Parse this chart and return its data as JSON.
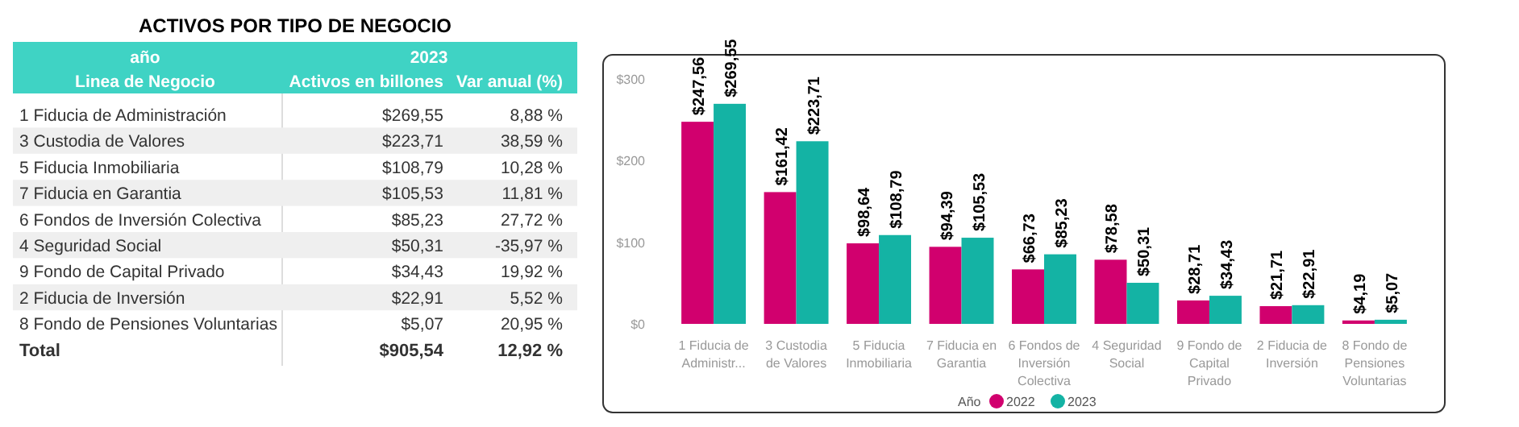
{
  "chart_data": [
    {
      "type": "other",
      "title": "ACTIVOS POR TIPO DE NEGOCIO",
      "ylabel": "Linea de Negocio",
      "annotations": [
        "año",
        "2023"
      ],
      "categories": [
        "Activos en billones",
        "Var anual (%)"
      ],
      "y_categories": [
        "1 Fiducia de Administración",
        "3 Custodia de Valores",
        "5 Fiducia Inmobiliaria",
        "7 Fiducia en Garantia",
        "6 Fondos de Inversión Colectiva",
        "4 Seguridad Social",
        "9 Fondo de Capital Privado",
        "2 Fiducia de Inversión",
        "8 Fondo de Pensiones Voluntarias",
        "Total"
      ],
      "cell_labels": [
        [
          "$269,55",
          "8,88 %"
        ],
        [
          "$223,71",
          "38,59 %"
        ],
        [
          "$108,79",
          "10,28 %"
        ],
        [
          "$105,53",
          "11,81 %"
        ],
        [
          "$85,23",
          "27,72 %"
        ],
        [
          "$50,31",
          "-35,97 %"
        ],
        [
          "$34,43",
          "19,92 %"
        ],
        [
          "$22,91",
          "5,52 %"
        ],
        [
          "$5,07",
          "20,95 %"
        ],
        [
          "$905,54",
          "12,92 %"
        ]
      ]
    },
    {
      "type": "bar",
      "legend": "bottom",
      "legend_title": "Año",
      "ylim": [
        0,
        300
      ],
      "yticks": [
        {
          "value": 0,
          "label": "$0"
        },
        {
          "value": 100,
          "label": "$100"
        },
        {
          "value": 200,
          "label": "$200"
        },
        {
          "value": 300,
          "label": "$300"
        }
      ],
      "categories": [
        "1 Fiducia de Administr...",
        "3 Custodia de Valores",
        "5 Fiducia Inmobiliaria",
        "7 Fiducia en Garantia",
        "6 Fondos de Inversión Colectiva",
        "4 Seguridad Social",
        "9 Fondo de Capital Privado",
        "2 Fiducia de Inversión",
        "8 Fondo de Pensiones Voluntarias"
      ],
      "series": [
        {
          "name": "2022",
          "color": "#d1006e",
          "values": [
            247.56,
            161.42,
            98.64,
            94.39,
            66.73,
            78.58,
            28.71,
            21.71,
            4.19
          ],
          "value_labels": [
            "$247,56",
            "$161,42",
            "$98,64",
            "$94,39",
            "$66,73",
            "$78,58",
            "$28,71",
            "$21,71",
            "$4,19"
          ]
        },
        {
          "name": "2023",
          "color": "#14b3a4",
          "values": [
            269.55,
            223.71,
            108.79,
            105.53,
            85.23,
            50.31,
            34.43,
            22.91,
            5.07
          ],
          "value_labels": [
            "$269,55",
            "$223,71",
            "$108,79",
            "$105,53",
            "$85,23",
            "$50,31",
            "$34,43",
            "$22,91",
            "$5,07"
          ]
        }
      ]
    }
  ]
}
